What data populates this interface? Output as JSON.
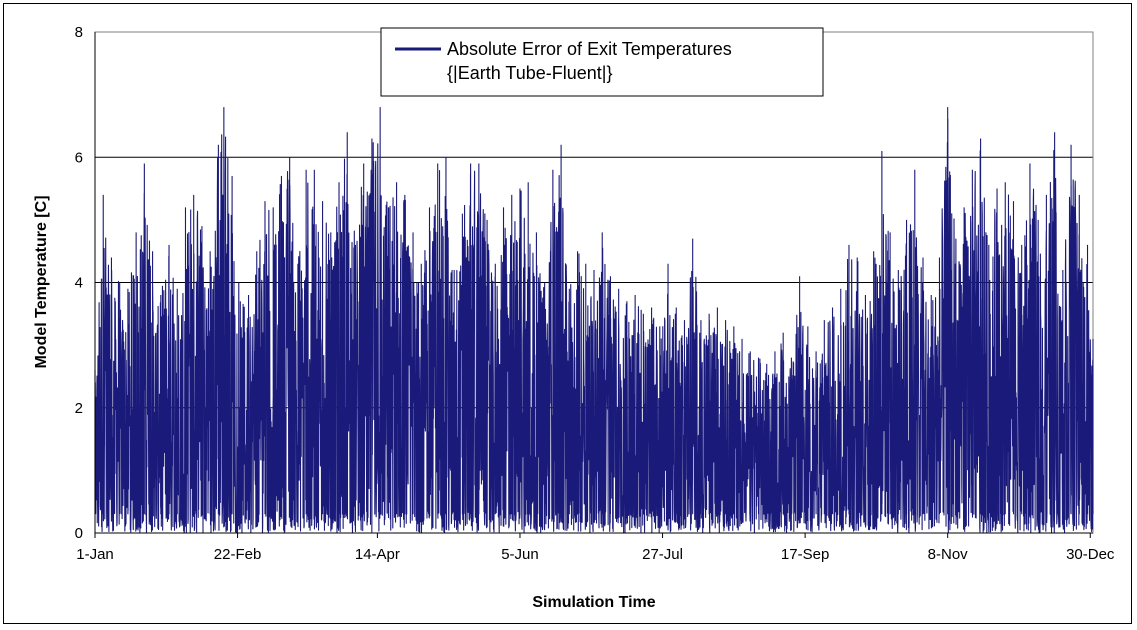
{
  "chart_data": {
    "type": "line",
    "xlabel": "Simulation Time",
    "ylabel": "Model Temperature [C]",
    "ylim": [
      0,
      8
    ],
    "yticks": [
      "0",
      "2",
      "4",
      "6",
      "8"
    ],
    "xlim": [
      0,
      364
    ],
    "xticks": [
      {
        "label": "1-Jan",
        "day": 0
      },
      {
        "label": "22-Feb",
        "day": 52
      },
      {
        "label": "14-Apr",
        "day": 103
      },
      {
        "label": "5-Jun",
        "day": 155
      },
      {
        "label": "27-Jul",
        "day": 207
      },
      {
        "label": "17-Sep",
        "day": 259
      },
      {
        "label": "8-Nov",
        "day": 311
      },
      {
        "label": "30-Dec",
        "day": 363
      }
    ],
    "grid": "horizontal",
    "legend_position": "top-center",
    "series": [
      {
        "name": "Absolute Error of Exit Temperatures",
        "name_line2": "{|Earth Tube-Fluent|}",
        "color": "#1a1a7a",
        "envelope_peaks": [
          [
            0,
            2.6
          ],
          [
            3,
            5.4
          ],
          [
            6,
            4.4
          ],
          [
            9,
            4.0
          ],
          [
            12,
            3.9
          ],
          [
            15,
            4.8
          ],
          [
            18,
            5.9
          ],
          [
            21,
            4.5
          ],
          [
            24,
            3.8
          ],
          [
            27,
            4.6
          ],
          [
            30,
            3.9
          ],
          [
            33,
            5.2
          ],
          [
            36,
            5.4
          ],
          [
            39,
            4.9
          ],
          [
            42,
            4.5
          ],
          [
            45,
            6.2
          ],
          [
            47,
            6.8
          ],
          [
            50,
            5.7
          ],
          [
            53,
            3.7
          ],
          [
            56,
            3.8
          ],
          [
            59,
            4.5
          ],
          [
            62,
            5.3
          ],
          [
            65,
            5.2
          ],
          [
            68,
            5.7
          ],
          [
            71,
            6.0
          ],
          [
            74,
            4.3
          ],
          [
            77,
            5.8
          ],
          [
            80,
            5.8
          ],
          [
            83,
            5.3
          ],
          [
            86,
            4.8
          ],
          [
            89,
            5.6
          ],
          [
            92,
            6.4
          ],
          [
            95,
            4.6
          ],
          [
            98,
            5.9
          ],
          [
            101,
            6.3
          ],
          [
            104,
            6.8
          ],
          [
            107,
            5.2
          ],
          [
            110,
            5.6
          ],
          [
            113,
            5.4
          ],
          [
            116,
            4.8
          ],
          [
            119,
            4.3
          ],
          [
            122,
            5.2
          ],
          [
            125,
            5.9
          ],
          [
            128,
            6.0
          ],
          [
            131,
            4.2
          ],
          [
            134,
            5.1
          ],
          [
            137,
            5.9
          ],
          [
            140,
            5.9
          ],
          [
            143,
            5.0
          ],
          [
            146,
            4.3
          ],
          [
            149,
            5.2
          ],
          [
            152,
            5.4
          ],
          [
            155,
            5.5
          ],
          [
            158,
            5.6
          ],
          [
            161,
            4.8
          ],
          [
            164,
            4.0
          ],
          [
            167,
            5.8
          ],
          [
            170,
            6.2
          ],
          [
            173,
            3.9
          ],
          [
            176,
            4.5
          ],
          [
            179,
            4.3
          ],
          [
            182,
            4.2
          ],
          [
            185,
            4.8
          ],
          [
            188,
            4.1
          ],
          [
            191,
            3.9
          ],
          [
            194,
            3.7
          ],
          [
            197,
            3.8
          ],
          [
            200,
            3.5
          ],
          [
            203,
            3.6
          ],
          [
            206,
            3.3
          ],
          [
            209,
            4.3
          ],
          [
            212,
            3.6
          ],
          [
            215,
            3.4
          ],
          [
            218,
            4.7
          ],
          [
            221,
            3.4
          ],
          [
            224,
            3.5
          ],
          [
            227,
            3.6
          ],
          [
            230,
            3.4
          ],
          [
            233,
            3.3
          ],
          [
            236,
            3.1
          ],
          [
            239,
            2.9
          ],
          [
            242,
            2.8
          ],
          [
            245,
            2.7
          ],
          [
            248,
            2.9
          ],
          [
            251,
            3.2
          ],
          [
            254,
            2.8
          ],
          [
            257,
            4.1
          ],
          [
            260,
            3.3
          ],
          [
            263,
            2.9
          ],
          [
            266,
            3.4
          ],
          [
            269,
            3.6
          ],
          [
            272,
            3.9
          ],
          [
            275,
            4.6
          ],
          [
            278,
            4.4
          ],
          [
            281,
            3.8
          ],
          [
            284,
            4.5
          ],
          [
            287,
            6.1
          ],
          [
            290,
            4.8
          ],
          [
            293,
            4.2
          ],
          [
            296,
            5.0
          ],
          [
            299,
            5.8
          ],
          [
            302,
            4.4
          ],
          [
            305,
            3.8
          ],
          [
            308,
            4.4
          ],
          [
            311,
            6.8
          ],
          [
            314,
            4.7
          ],
          [
            317,
            5.2
          ],
          [
            320,
            5.8
          ],
          [
            323,
            6.3
          ],
          [
            326,
            4.6
          ],
          [
            329,
            5.5
          ],
          [
            332,
            5.6
          ],
          [
            335,
            5.3
          ],
          [
            338,
            4.6
          ],
          [
            341,
            5.9
          ],
          [
            344,
            5.0
          ],
          [
            347,
            5.4
          ],
          [
            350,
            6.4
          ],
          [
            353,
            4.2
          ],
          [
            356,
            6.2
          ],
          [
            359,
            5.4
          ],
          [
            362,
            4.6
          ],
          [
            364,
            3.1
          ]
        ]
      }
    ]
  }
}
